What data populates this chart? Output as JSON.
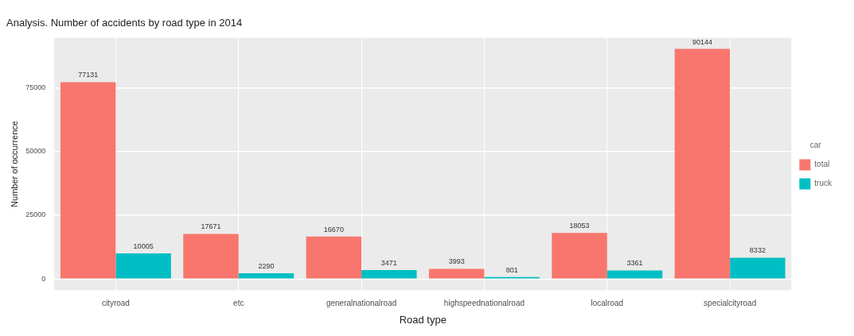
{
  "chart_data": {
    "type": "bar",
    "title": "Analysis. Number of accidents by road type in 2014",
    "xlabel": "Road type",
    "ylabel": "Number of occurrence",
    "legend_title": "car",
    "categories": [
      "cityroad",
      "etc",
      "generalnationalroad",
      "highspeednationalroad",
      "localroad",
      "specialcityroad"
    ],
    "series": [
      {
        "name": "total",
        "color": "#f8766d",
        "values": [
          77131,
          17671,
          16670,
          3993,
          18053,
          90144
        ]
      },
      {
        "name": "truck",
        "color": "#00bfc4",
        "values": [
          10005,
          2290,
          3471,
          801,
          3361,
          8332
        ]
      }
    ],
    "ylim": [
      -4400,
      94500
    ],
    "yticks": [
      0,
      25000,
      50000,
      75000
    ],
    "grid": true,
    "legend": "right",
    "data_labels": true
  }
}
